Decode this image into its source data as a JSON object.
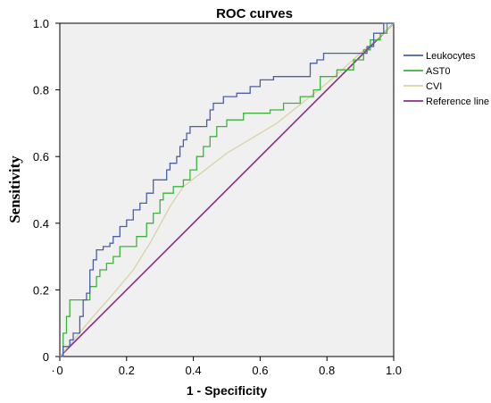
{
  "chart_data": {
    "type": "line",
    "title": "ROC curves",
    "xlabel": "1 - Specificity",
    "ylabel": "Sensitivity",
    "xlim": [
      0,
      1
    ],
    "ylim": [
      0,
      1
    ],
    "x_ticks": [
      {
        "value": -0.02,
        "label": "·"
      },
      {
        "value": 0.0,
        "label": "0"
      },
      {
        "value": 0.2,
        "label": "0.2"
      },
      {
        "value": 0.4,
        "label": "0.4"
      },
      {
        "value": 0.6,
        "label": "0.6"
      },
      {
        "value": 0.8,
        "label": "0.8"
      },
      {
        "value": 1.0,
        "label": "1.0"
      }
    ],
    "y_ticks": [
      {
        "value": 0.0,
        "label": "0"
      },
      {
        "value": 0.2,
        "label": "0.2"
      },
      {
        "value": 0.4,
        "label": "0.4"
      },
      {
        "value": 0.6,
        "label": "0.6"
      },
      {
        "value": 0.8,
        "label": "0.8"
      },
      {
        "value": 1.0,
        "label": "1.0"
      }
    ],
    "grid": false,
    "background": "#f0f0f0",
    "legend_position": "top-right",
    "series": [
      {
        "name": "Leukocytes",
        "color": "#4a5fa8",
        "points": [
          [
            0,
            0
          ],
          [
            0.01,
            0
          ],
          [
            0.01,
            0.03
          ],
          [
            0.03,
            0.03
          ],
          [
            0.03,
            0.05
          ],
          [
            0.04,
            0.05
          ],
          [
            0.04,
            0.07
          ],
          [
            0.06,
            0.07
          ],
          [
            0.06,
            0.12
          ],
          [
            0.07,
            0.12
          ],
          [
            0.07,
            0.17
          ],
          [
            0.08,
            0.17
          ],
          [
            0.08,
            0.19
          ],
          [
            0.09,
            0.19
          ],
          [
            0.09,
            0.26
          ],
          [
            0.1,
            0.26
          ],
          [
            0.1,
            0.29
          ],
          [
            0.11,
            0.29
          ],
          [
            0.11,
            0.32
          ],
          [
            0.13,
            0.32
          ],
          [
            0.13,
            0.33
          ],
          [
            0.15,
            0.33
          ],
          [
            0.15,
            0.34
          ],
          [
            0.16,
            0.34
          ],
          [
            0.16,
            0.36
          ],
          [
            0.18,
            0.36
          ],
          [
            0.18,
            0.39
          ],
          [
            0.2,
            0.39
          ],
          [
            0.2,
            0.41
          ],
          [
            0.22,
            0.41
          ],
          [
            0.22,
            0.44
          ],
          [
            0.24,
            0.44
          ],
          [
            0.24,
            0.46
          ],
          [
            0.26,
            0.46
          ],
          [
            0.26,
            0.49
          ],
          [
            0.28,
            0.49
          ],
          [
            0.28,
            0.53
          ],
          [
            0.32,
            0.53
          ],
          [
            0.32,
            0.56
          ],
          [
            0.33,
            0.56
          ],
          [
            0.33,
            0.58
          ],
          [
            0.35,
            0.58
          ],
          [
            0.35,
            0.6
          ],
          [
            0.36,
            0.6
          ],
          [
            0.36,
            0.63
          ],
          [
            0.37,
            0.63
          ],
          [
            0.37,
            0.65
          ],
          [
            0.38,
            0.65
          ],
          [
            0.38,
            0.67
          ],
          [
            0.39,
            0.67
          ],
          [
            0.39,
            0.69
          ],
          [
            0.44,
            0.69
          ],
          [
            0.44,
            0.71
          ],
          [
            0.45,
            0.71
          ],
          [
            0.45,
            0.74
          ],
          [
            0.46,
            0.74
          ],
          [
            0.46,
            0.76
          ],
          [
            0.49,
            0.76
          ],
          [
            0.49,
            0.78
          ],
          [
            0.53,
            0.78
          ],
          [
            0.53,
            0.79
          ],
          [
            0.57,
            0.79
          ],
          [
            0.57,
            0.81
          ],
          [
            0.6,
            0.81
          ],
          [
            0.6,
            0.83
          ],
          [
            0.64,
            0.83
          ],
          [
            0.64,
            0.84
          ],
          [
            0.75,
            0.84
          ],
          [
            0.75,
            0.88
          ],
          [
            0.77,
            0.88
          ],
          [
            0.77,
            0.89
          ],
          [
            0.79,
            0.89
          ],
          [
            0.79,
            0.91
          ],
          [
            0.92,
            0.91
          ],
          [
            0.92,
            0.93
          ],
          [
            0.94,
            0.93
          ],
          [
            0.94,
            0.97
          ],
          [
            0.97,
            0.97
          ],
          [
            0.97,
            1
          ],
          [
            1,
            1
          ]
        ]
      },
      {
        "name": "AST0",
        "color": "#3db23d",
        "points": [
          [
            0,
            0
          ],
          [
            0.01,
            0
          ],
          [
            0.01,
            0.07
          ],
          [
            0.02,
            0.07
          ],
          [
            0.02,
            0.12
          ],
          [
            0.03,
            0.12
          ],
          [
            0.03,
            0.17
          ],
          [
            0.09,
            0.17
          ],
          [
            0.09,
            0.21
          ],
          [
            0.11,
            0.21
          ],
          [
            0.11,
            0.24
          ],
          [
            0.12,
            0.24
          ],
          [
            0.12,
            0.26
          ],
          [
            0.14,
            0.26
          ],
          [
            0.14,
            0.28
          ],
          [
            0.16,
            0.28
          ],
          [
            0.16,
            0.3
          ],
          [
            0.18,
            0.3
          ],
          [
            0.18,
            0.33
          ],
          [
            0.23,
            0.33
          ],
          [
            0.23,
            0.36
          ],
          [
            0.26,
            0.36
          ],
          [
            0.26,
            0.4
          ],
          [
            0.28,
            0.4
          ],
          [
            0.28,
            0.43
          ],
          [
            0.3,
            0.43
          ],
          [
            0.3,
            0.47
          ],
          [
            0.31,
            0.47
          ],
          [
            0.31,
            0.49
          ],
          [
            0.34,
            0.49
          ],
          [
            0.34,
            0.51
          ],
          [
            0.37,
            0.51
          ],
          [
            0.37,
            0.53
          ],
          [
            0.39,
            0.53
          ],
          [
            0.39,
            0.56
          ],
          [
            0.41,
            0.56
          ],
          [
            0.41,
            0.6
          ],
          [
            0.43,
            0.6
          ],
          [
            0.43,
            0.63
          ],
          [
            0.45,
            0.63
          ],
          [
            0.45,
            0.66
          ],
          [
            0.47,
            0.66
          ],
          [
            0.47,
            0.69
          ],
          [
            0.5,
            0.69
          ],
          [
            0.5,
            0.71
          ],
          [
            0.55,
            0.71
          ],
          [
            0.55,
            0.73
          ],
          [
            0.63,
            0.73
          ],
          [
            0.63,
            0.74
          ],
          [
            0.67,
            0.74
          ],
          [
            0.67,
            0.76
          ],
          [
            0.72,
            0.76
          ],
          [
            0.72,
            0.78
          ],
          [
            0.76,
            0.78
          ],
          [
            0.76,
            0.8
          ],
          [
            0.78,
            0.8
          ],
          [
            0.78,
            0.84
          ],
          [
            0.83,
            0.84
          ],
          [
            0.83,
            0.86
          ],
          [
            0.88,
            0.86
          ],
          [
            0.88,
            0.89
          ],
          [
            0.91,
            0.89
          ],
          [
            0.91,
            0.92
          ],
          [
            0.93,
            0.92
          ],
          [
            0.93,
            0.95
          ],
          [
            0.96,
            0.95
          ],
          [
            0.96,
            0.97
          ],
          [
            0.98,
            0.97
          ],
          [
            0.98,
            1
          ],
          [
            1,
            1
          ]
        ]
      },
      {
        "name": "CVI",
        "color": "#d9d3a0",
        "points": [
          [
            0,
            0
          ],
          [
            0.05,
            0.06
          ],
          [
            0.1,
            0.12
          ],
          [
            0.17,
            0.2
          ],
          [
            0.22,
            0.26
          ],
          [
            0.27,
            0.34
          ],
          [
            0.33,
            0.45
          ],
          [
            0.37,
            0.51
          ],
          [
            0.5,
            0.61
          ],
          [
            0.65,
            0.7
          ],
          [
            0.8,
            0.82
          ],
          [
            0.9,
            0.91
          ],
          [
            0.97,
            0.97
          ],
          [
            1,
            1
          ]
        ]
      },
      {
        "name": "Reference line",
        "color": "#8a2f7f",
        "points": [
          [
            0,
            0
          ],
          [
            1,
            1
          ]
        ]
      }
    ]
  }
}
